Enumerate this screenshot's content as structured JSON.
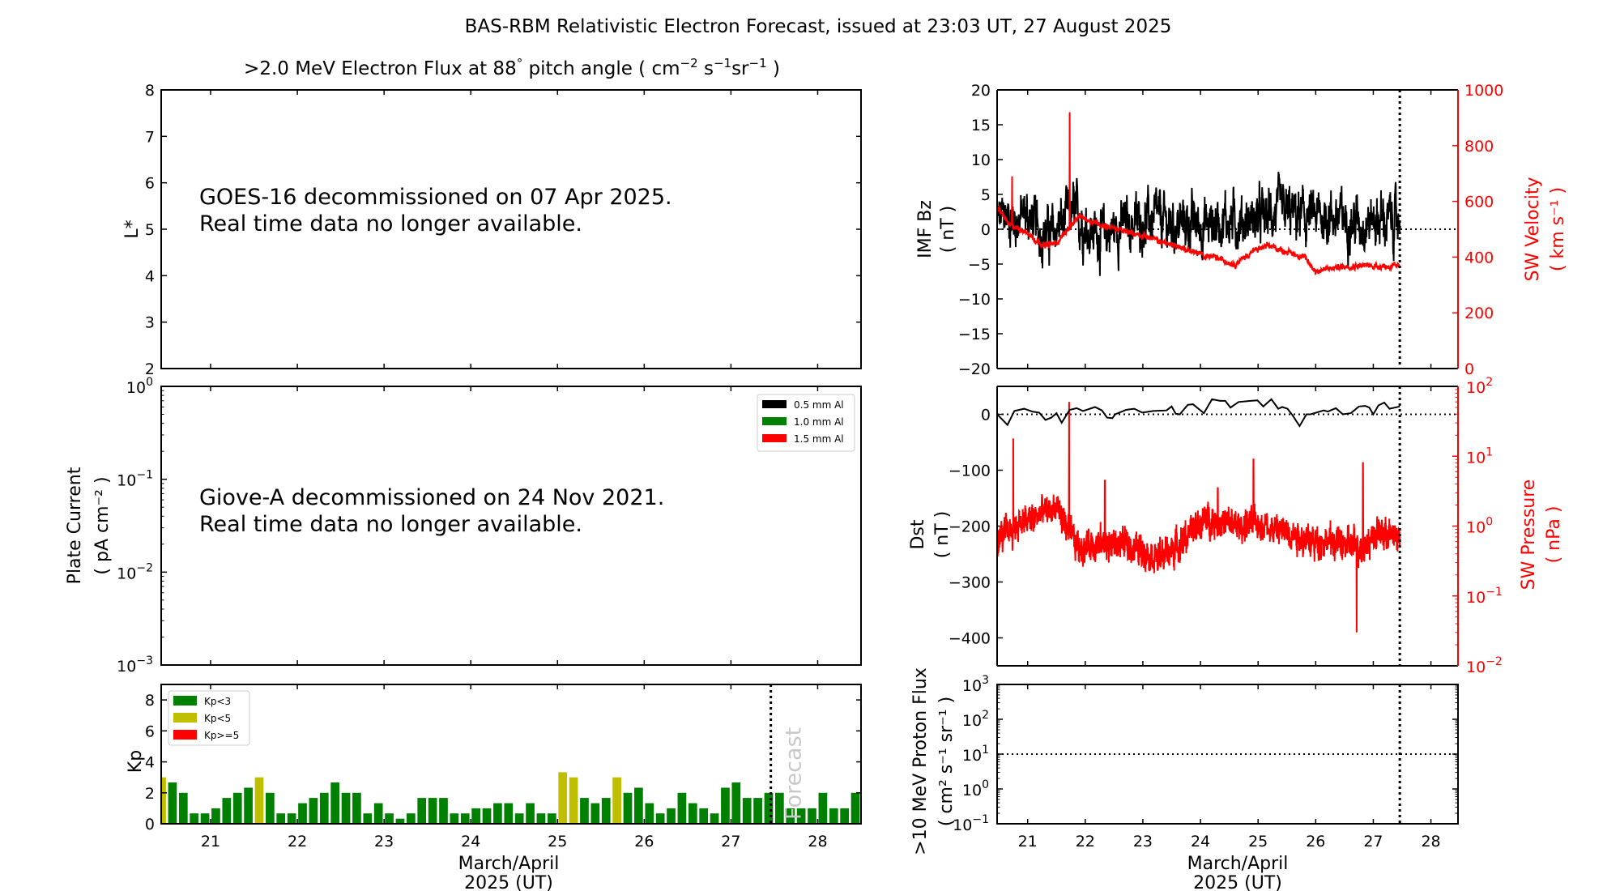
{
  "figure": {
    "title": "BAS-RBM Relativistic Electron Forecast, issued at 23:03 UT, 27 August 2025",
    "forecast_label": "Forecast",
    "forecast_time_day": 27.46,
    "xlabel_line1": "March/April",
    "xlabel_line2": "2025 (UT)",
    "colors": {
      "black": "#000000",
      "red": "#ff0000",
      "green": "#008000",
      "yellow": "#bfbf00",
      "forecast_text": "#c8c8c8"
    }
  },
  "chart_data": [
    {
      "id": "electron-flux",
      "type": "heatmap",
      "title": ">2.0 MeV Electron Flux at 88° pitch angle ( cm⁻² s⁻¹ sr⁻¹ )",
      "title_parts": [
        ">2.0 MeV Electron Flux at 88",
        "°",
        " pitch angle ( cm",
        "−2",
        " s",
        "−1",
        "sr",
        "−1",
        " )"
      ],
      "ylabel": "L*",
      "ylim": [
        2,
        8
      ],
      "yticks": [
        2,
        3,
        4,
        5,
        6,
        7,
        8
      ],
      "xlim": [
        20.43,
        28.5
      ],
      "xticks": [
        21,
        22,
        23,
        24,
        25,
        26,
        27,
        28
      ],
      "message": [
        "GOES-16 decommissioned on 07 Apr 2025.",
        "Real time data no longer available."
      ]
    },
    {
      "id": "plate-current",
      "type": "line",
      "ylabel": "Plate Current",
      "ylabel_unit": "( pA cm⁻² )",
      "yscale": "log",
      "ylim": [
        0.001,
        1
      ],
      "yticks": [
        {
          "base": "10",
          "exp": "0"
        },
        {
          "base": "10",
          "exp": "−1"
        },
        {
          "base": "10",
          "exp": "−2"
        },
        {
          "base": "10",
          "exp": "−3"
        }
      ],
      "xlim": [
        20.43,
        28.5
      ],
      "legend": [
        {
          "label": "0.5 mm Al",
          "color": "#000000"
        },
        {
          "label": "1.0 mm Al",
          "color": "#008000"
        },
        {
          "label": "1.5 mm Al",
          "color": "#ff0000"
        }
      ],
      "legend_position": "top-right",
      "message": [
        "Giove-A decommissioned on 24 Nov 2021.",
        "Real time data no longer available."
      ]
    },
    {
      "id": "kp",
      "type": "bar",
      "ylabel": "Kp",
      "ylim": [
        0,
        9
      ],
      "yticks": [
        0,
        2,
        4,
        6,
        8
      ],
      "xlim": [
        20.43,
        28.5
      ],
      "xticks": [
        "21",
        "22",
        "23",
        "24",
        "25",
        "26",
        "27",
        "28"
      ],
      "bar_width_days": 0.1,
      "legend": [
        {
          "label": "Kp<3",
          "color": "#008000"
        },
        {
          "label": "Kp<5",
          "color": "#bfbf00"
        },
        {
          "label": "Kp>=5",
          "color": "#ff0000"
        }
      ],
      "legend_position": "top-left",
      "start_day": 20.375,
      "step_days": 0.125,
      "values": [
        3.0,
        2.67,
        2.0,
        0.67,
        0.67,
        1.0,
        1.67,
        2.0,
        2.33,
        3.0,
        2.0,
        0.67,
        0.67,
        1.33,
        1.67,
        2.0,
        2.67,
        2.0,
        2.0,
        0.67,
        1.33,
        0.67,
        0.33,
        0.67,
        1.67,
        1.67,
        1.67,
        0.67,
        0.67,
        1.0,
        1.0,
        1.33,
        1.33,
        0.67,
        1.33,
        0.67,
        0.67,
        3.33,
        3.0,
        1.67,
        1.33,
        1.67,
        3.0,
        2.0,
        2.33,
        1.33,
        0.67,
        1.0,
        2.0,
        1.33,
        1.0,
        0.67,
        2.33,
        2.67,
        1.67,
        1.67,
        2.0,
        2.0,
        1.0,
        1.0,
        1.0,
        2.0,
        1.0,
        1.0,
        2.0
      ]
    },
    {
      "id": "imf-bz-sw-velocity",
      "type": "line",
      "ylabel": "IMF Bz",
      "ylabel_unit": "( nT )",
      "ylim": [
        -20,
        20
      ],
      "yticks": [
        -20,
        -15,
        -10,
        -5,
        0,
        5,
        10,
        15,
        20
      ],
      "ylabel_right": "SW Velocity",
      "ylabel_right_unit": "( km s⁻¹ )",
      "ylim_right": [
        0,
        1000
      ],
      "yticks_right": [
        0,
        200,
        400,
        600,
        800,
        1000
      ],
      "xlim": [
        20.47,
        28.47
      ],
      "xticks": [
        "21",
        "22",
        "23",
        "24",
        "25",
        "26",
        "27",
        "28"
      ],
      "reference_line_y": 0,
      "series": [
        {
          "name": "IMF Bz",
          "axis": "left",
          "color": "#000000",
          "noise": 2.6,
          "x": [
            20.47,
            20.6,
            20.8,
            21.0,
            21.2,
            21.4,
            21.6,
            21.8,
            22.0,
            22.3,
            22.6,
            22.9,
            23.2,
            23.5,
            23.8,
            24.1,
            24.4,
            24.7,
            25.0,
            25.3,
            25.6,
            25.9,
            26.2,
            26.5,
            26.8,
            27.1,
            27.46
          ],
          "y": [
            1,
            2,
            1.5,
            2,
            0,
            -1,
            1,
            2.5,
            0.5,
            -1,
            0.5,
            1,
            1.5,
            0.5,
            1,
            0.5,
            1.5,
            1,
            1.5,
            2.5,
            2,
            1.5,
            2,
            1.5,
            1,
            1.5,
            1
          ]
        },
        {
          "name": "SW Velocity",
          "axis": "right",
          "color": "#ff0000",
          "noise": 12,
          "x": [
            20.47,
            20.7,
            20.9,
            21.1,
            21.3,
            21.5,
            21.7,
            21.9,
            22.1,
            22.4,
            22.7,
            23.0,
            23.3,
            23.6,
            24.0,
            24.3,
            24.6,
            24.9,
            25.2,
            25.5,
            25.8,
            26.0,
            26.3,
            26.6,
            27.0,
            27.46
          ],
          "y": [
            580,
            510,
            500,
            470,
            440,
            450,
            500,
            545,
            530,
            510,
            490,
            480,
            455,
            440,
            410,
            395,
            375,
            420,
            440,
            420,
            400,
            350,
            360,
            370,
            370,
            365
          ],
          "spikes": [
            {
              "x": 20.73,
              "y": 690
            },
            {
              "x": 21.73,
              "y": 920
            }
          ]
        }
      ]
    },
    {
      "id": "dst-sw-pressure",
      "type": "line",
      "ylabel": "Dst",
      "ylabel_unit": "( nT )",
      "ylim": [
        -450,
        50
      ],
      "yticks": [
        -400,
        -300,
        -200,
        -100,
        0
      ],
      "ylabel_right": "SW Pressure",
      "ylabel_right_unit": "( nPa )",
      "yscale_right": "log",
      "ylim_right": [
        0.01,
        100
      ],
      "yticks_right": [
        {
          "base": "10",
          "exp": "−2"
        },
        {
          "base": "10",
          "exp": "−1"
        },
        {
          "base": "10",
          "exp": "0"
        },
        {
          "base": "10",
          "exp": "1"
        },
        {
          "base": "10",
          "exp": "2"
        }
      ],
      "xlim": [
        20.47,
        28.47
      ],
      "xticks": [
        "21",
        "22",
        "23",
        "24",
        "25",
        "26",
        "27",
        "28"
      ],
      "reference_line_y": 0,
      "series": [
        {
          "name": "Dst",
          "axis": "left",
          "color": "#000000",
          "x": [
            20.47,
            20.65,
            20.77,
            20.94,
            21.08,
            21.2,
            21.31,
            21.41,
            21.5,
            21.59,
            21.73,
            21.85,
            21.96,
            22.17,
            22.29,
            22.38,
            22.47,
            22.52,
            22.71,
            22.85,
            22.99,
            23.18,
            23.41,
            23.5,
            23.57,
            23.64,
            23.78,
            23.87,
            24.06,
            24.2,
            24.34,
            24.43,
            24.52,
            24.66,
            24.87,
            24.99,
            25.09,
            25.23,
            25.35,
            25.42,
            25.51,
            25.6,
            25.72,
            25.84,
            25.91,
            26.14,
            26.21,
            26.35,
            26.47,
            26.61,
            26.75,
            26.86,
            26.93,
            27.0,
            27.09,
            27.19,
            27.28,
            27.46
          ],
          "y": [
            0,
            -19,
            6,
            10,
            5,
            3,
            -10,
            -6,
            2,
            -15,
            8,
            11,
            6,
            13,
            7,
            -6,
            -7,
            0,
            8,
            10,
            3,
            6,
            7,
            14,
            1,
            0,
            17,
            18,
            2,
            27,
            24,
            24,
            12,
            22,
            24,
            25,
            14,
            27,
            10,
            13,
            10,
            -2,
            -21,
            0,
            0,
            7,
            5,
            11,
            0,
            2,
            14,
            15,
            12,
            0,
            16,
            21,
            10,
            14
          ]
        },
        {
          "name": "SW Pressure",
          "axis": "right",
          "color": "#ff0000",
          "noise_log10": 0.22,
          "x": [
            20.47,
            20.7,
            20.9,
            21.1,
            21.3,
            21.5,
            21.7,
            21.9,
            22.1,
            22.4,
            22.7,
            23.0,
            23.3,
            23.6,
            23.9,
            24.1,
            24.4,
            24.7,
            25.0,
            25.3,
            25.6,
            25.9,
            26.2,
            26.5,
            26.8,
            27.1,
            27.46
          ],
          "y": [
            0.6,
            0.9,
            1.1,
            1.3,
            1.6,
            1.8,
            0.8,
            0.5,
            0.55,
            0.55,
            0.55,
            0.45,
            0.35,
            0.5,
            0.9,
            1.3,
            1.1,
            1.0,
            1.1,
            0.9,
            0.8,
            0.6,
            0.6,
            0.55,
            0.5,
            0.8,
            0.7
          ],
          "spikes": [
            {
              "x": 20.75,
              "y": 18
            },
            {
              "x": 21.72,
              "y": 60
            },
            {
              "x": 22.34,
              "y": 4.5
            },
            {
              "x": 24.3,
              "y": 3.5
            },
            {
              "x": 24.92,
              "y": 9
            },
            {
              "x": 26.82,
              "y": 8
            },
            {
              "x": 26.71,
              "y": 0.03
            }
          ]
        }
      ]
    },
    {
      "id": "proton-flux",
      "type": "line",
      "ylabel": ">10 MeV Proton Flux",
      "ylabel_unit": "( cm² s⁻¹ sr⁻¹ )",
      "yscale": "log",
      "ylim": [
        0.1,
        1000
      ],
      "yticks": [
        {
          "base": "10",
          "exp": "−1"
        },
        {
          "base": "10",
          "exp": "0"
        },
        {
          "base": "10",
          "exp": "1"
        },
        {
          "base": "10",
          "exp": "2"
        },
        {
          "base": "10",
          "exp": "3"
        }
      ],
      "xlim": [
        20.47,
        28.47
      ],
      "xticks": [
        "21",
        "22",
        "23",
        "24",
        "25",
        "26",
        "27",
        "28"
      ],
      "threshold_line_y": 10,
      "series": []
    }
  ]
}
